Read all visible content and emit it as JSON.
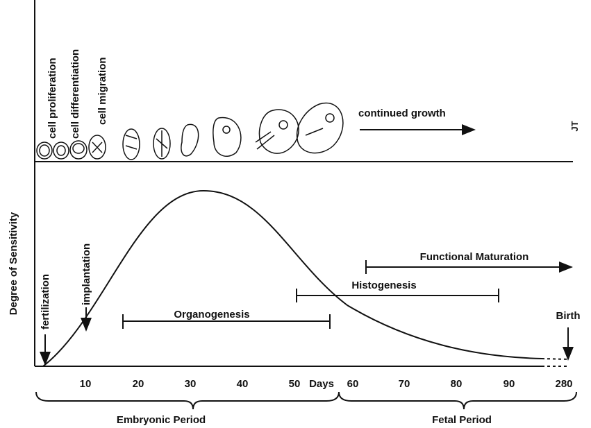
{
  "stage_labels": [
    "cell proliferation",
    "cell differentiation",
    "cell migration"
  ],
  "top_label": "continued growth",
  "initials": "JT",
  "y_axis_label": "Degree of Sensitivity",
  "events": [
    "fertilization",
    "implantation",
    "Birth"
  ],
  "processes": [
    "Organogenesis",
    "Histogenesis",
    "Functional Maturation"
  ],
  "x_axis": {
    "label": "Days",
    "ticks": [
      "10",
      "20",
      "30",
      "40",
      "50",
      "60",
      "70",
      "80",
      "90",
      "280"
    ]
  },
  "periods": [
    "Embryonic Period",
    "Fetal Period"
  ]
}
